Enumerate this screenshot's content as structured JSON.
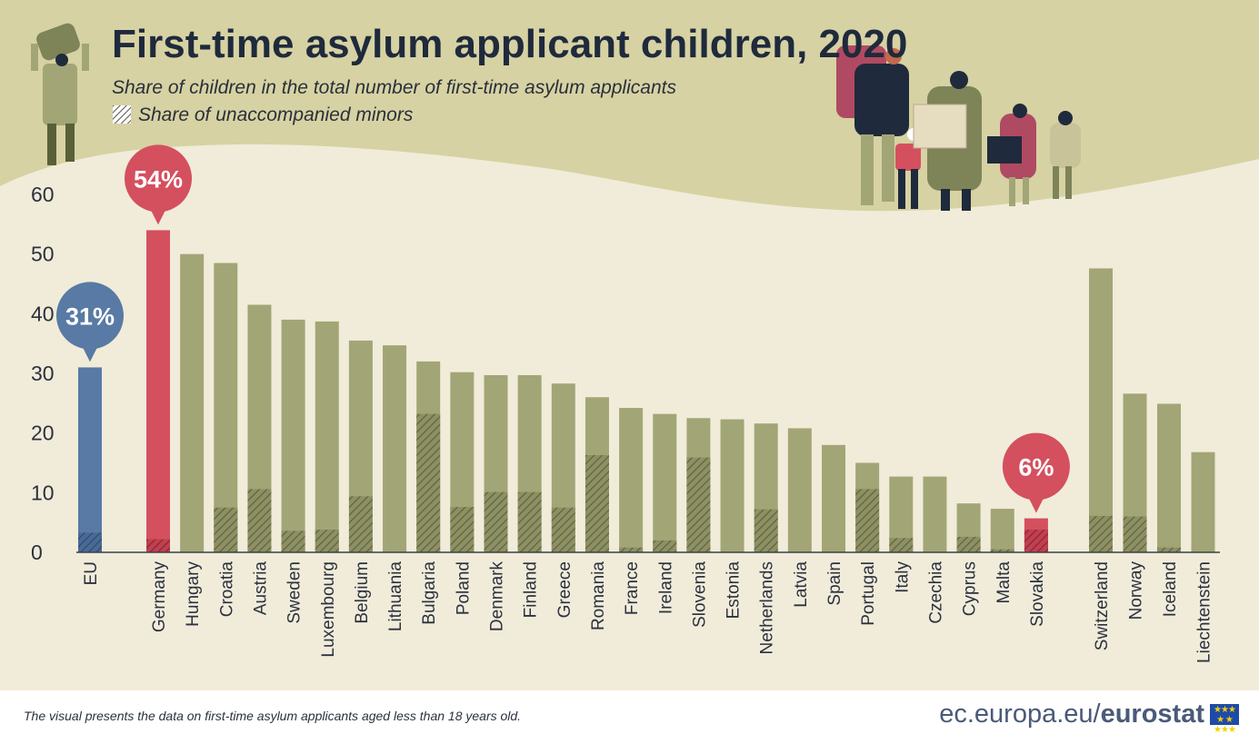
{
  "header": {
    "title": "First-time asylum applicant children, 2020",
    "subtitle": "Share of children in the total number of first-time asylum applicants",
    "legend_unaccompanied": "Share of unaccompanied minors"
  },
  "callouts": {
    "eu": "31%",
    "germany": "54%",
    "slovakia": "6%"
  },
  "footer": {
    "note": "The visual presents the data on first-time asylum applicants aged less than 18 years old.",
    "brand_prefix": "ec.europa.eu/",
    "brand_name": "eurostat"
  },
  "colors": {
    "olive": "#a2a676",
    "blue": "#587aa4",
    "red": "#d4505f",
    "background_top": "#d6d2a3",
    "background_bottom": "#f1ecd9"
  },
  "chart_data": {
    "type": "bar",
    "title": "First-time asylum applicant children, 2020",
    "ylim": [
      0,
      60
    ],
    "yticks": [
      0,
      10,
      20,
      30,
      40,
      50,
      60
    ],
    "grid": false,
    "categories": [
      "EU",
      "Germany",
      "Hungary",
      "Croatia",
      "Austria",
      "Sweden",
      "Luxembourg",
      "Belgium",
      "Lithuania",
      "Bulgaria",
      "Poland",
      "Denmark",
      "Finland",
      "Greece",
      "Romania",
      "France",
      "Ireland",
      "Slovenia",
      "Estonia",
      "Netherlands",
      "Latvia",
      "Spain",
      "Portugal",
      "Italy",
      "Czechia",
      "Cyprus",
      "Malta",
      "Slovakia",
      "Switzerland",
      "Norway",
      "Iceland",
      "Liechtenstein"
    ],
    "series": [
      {
        "name": "Share of children in the total number of first-time asylum applicants",
        "values": [
          31,
          54,
          50,
          48.5,
          41.5,
          39,
          38.7,
          35.5,
          34.7,
          32,
          30.2,
          29.7,
          29.7,
          28.3,
          26,
          24.2,
          23.2,
          22.5,
          22.3,
          21.6,
          20.8,
          18,
          15,
          12.7,
          12.7,
          8.2,
          7.3,
          5.7,
          47.6,
          26.6,
          24.9,
          16.8
        ]
      },
      {
        "name": "Share of unaccompanied minors",
        "values": [
          3.3,
          2.2,
          0,
          7.5,
          10.6,
          3.6,
          3.8,
          9.4,
          0,
          23.2,
          7.6,
          10.1,
          10.1,
          7.5,
          16.3,
          0.8,
          2,
          15.9,
          0,
          7.2,
          0,
          0.1,
          10.6,
          2.4,
          0,
          2.6,
          0.5,
          3.8,
          6.1,
          6,
          0.8,
          0
        ]
      }
    ]
  }
}
